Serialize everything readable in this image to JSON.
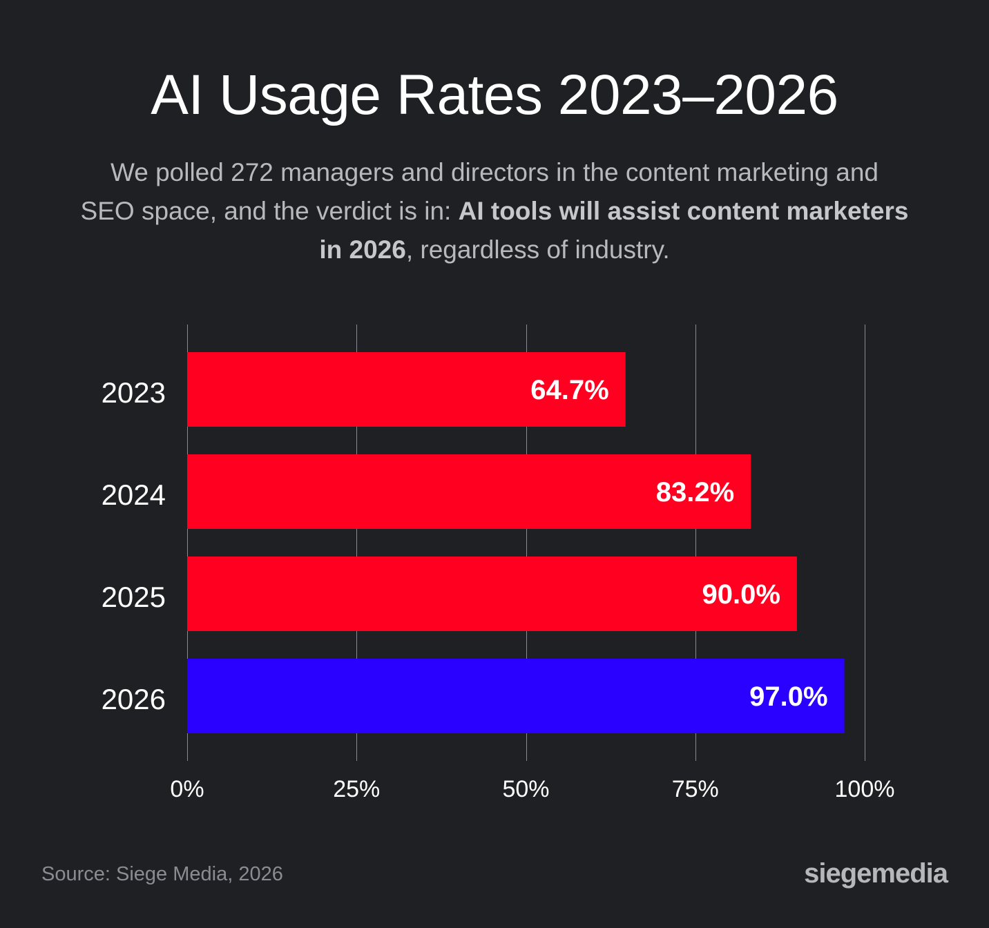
{
  "title": "AI Usage Rates 2023–2026",
  "subtitle": {
    "part1": "We polled 272 managers and directors in the content marketing and SEO space, and the verdict is in: ",
    "bold": "AI tools will assist content marketers in 2026",
    "part2": ", regardless of industry."
  },
  "chart_data": {
    "type": "bar",
    "orientation": "horizontal",
    "categories": [
      "2023",
      "2024",
      "2025",
      "2026"
    ],
    "values": [
      64.7,
      83.2,
      90.0,
      97.0
    ],
    "value_labels": [
      "64.7%",
      "83.2%",
      "90.0%",
      "97.0%"
    ],
    "colors": [
      "#ff0020",
      "#ff0020",
      "#ff0020",
      "#2a00ff"
    ],
    "xlim": [
      0,
      100
    ],
    "xticks": [
      0,
      25,
      50,
      75,
      100
    ],
    "xtick_labels": [
      "0%",
      "25%",
      "50%",
      "75%",
      "100%"
    ],
    "grid": true
  },
  "source": "Source: Siege Media, 2026",
  "logo": "siegemedia"
}
